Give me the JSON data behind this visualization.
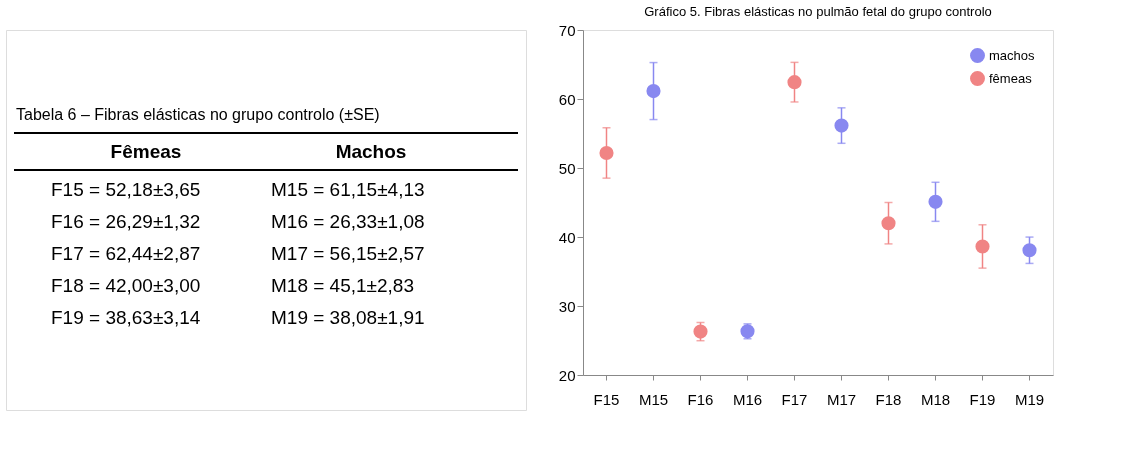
{
  "chart_data": {
    "type": "scatter",
    "title": "Gráfico 5. Fibras elásticas no pulmão fetal do grupo controlo",
    "categories": [
      "F15",
      "M15",
      "F16",
      "M16",
      "F17",
      "M17",
      "F18",
      "M18",
      "F19",
      "M19"
    ],
    "series": [
      {
        "name": "machos",
        "color": "#8888f0",
        "x": [
          "M15",
          "M16",
          "M17",
          "M18",
          "M19"
        ],
        "values": [
          61.15,
          26.33,
          56.15,
          45.1,
          38.08
        ],
        "errors": [
          4.13,
          1.08,
          2.57,
          2.83,
          1.91
        ]
      },
      {
        "name": "fêmeas",
        "color": "#f08484",
        "x": [
          "F15",
          "F16",
          "F17",
          "F18",
          "F19"
        ],
        "values": [
          52.18,
          26.29,
          62.44,
          42.0,
          38.63
        ],
        "errors": [
          3.65,
          1.32,
          2.87,
          3.0,
          3.14
        ]
      }
    ],
    "ylim": [
      20,
      70
    ],
    "yticks": [
      20,
      30,
      40,
      50,
      60,
      70
    ],
    "grid": false,
    "legend": "top right",
    "marker": "circle",
    "annotations": [
      "Tabela 6 – Fibras elásticas no grupo controlo (±SE)",
      "Fêmeas",
      "Machos",
      "F15 = 52,18±3,65",
      "M15 = 61,15±4,13",
      "F16 = 26,29±1,32",
      "M16 = 26,33±1,08",
      "F17 = 62,44±2,87",
      "M17 = 56,15±2,57",
      "F18 = 42,00±3,00",
      "M18 = 45,1±2,83",
      "F19 = 38,63±3,14",
      "M19 = 38,08±1,91"
    ]
  }
}
